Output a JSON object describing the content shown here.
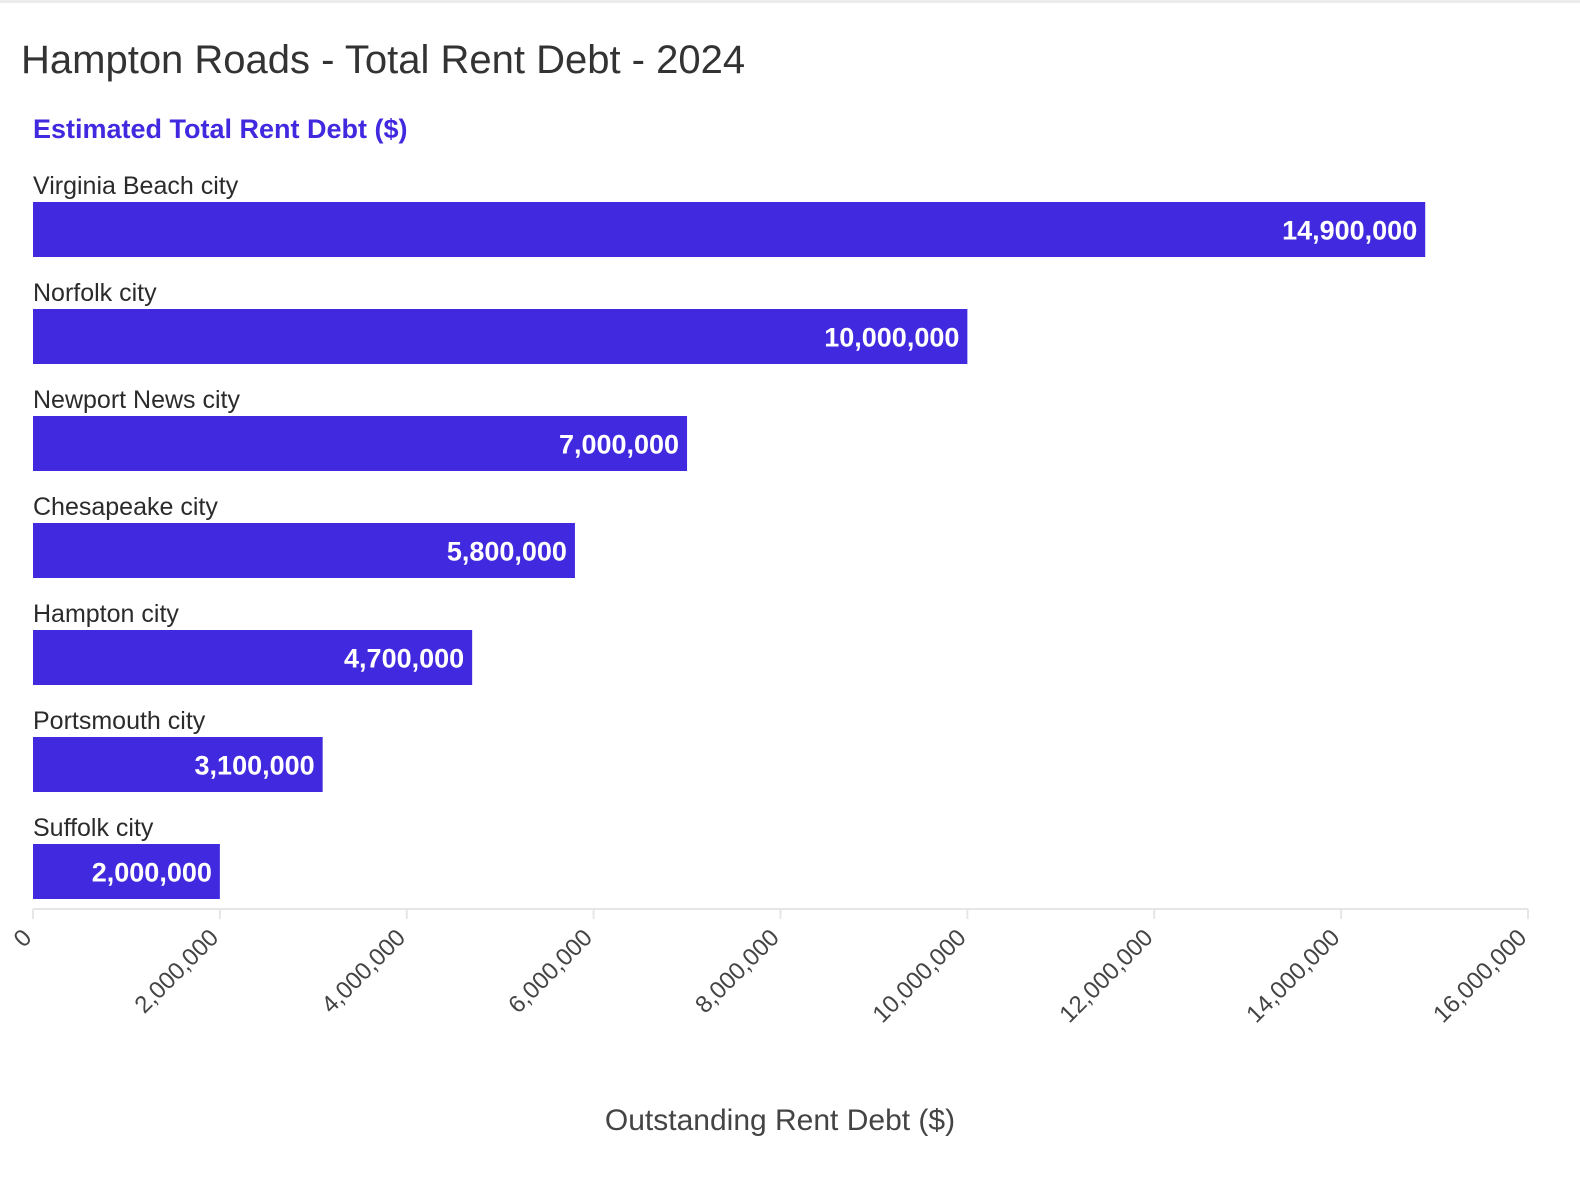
{
  "chart_data": {
    "type": "bar",
    "orientation": "horizontal",
    "title": "Hampton Roads - Total Rent Debt - 2024",
    "series": [
      {
        "name": "Estimated Total Rent Debt ($)",
        "color": "#4129df",
        "values": [
          14900000,
          10000000,
          7000000,
          5800000,
          4700000,
          3100000,
          2000000
        ]
      }
    ],
    "categories": [
      "Virginia Beach city",
      "Norfolk city",
      "Newport News city",
      "Chesapeake city",
      "Hampton city",
      "Portsmouth city",
      "Suffolk city"
    ],
    "data_labels": [
      "14,900,000",
      "10,000,000",
      "7,000,000",
      "5,800,000",
      "4,700,000",
      "3,100,000",
      "2,000,000"
    ],
    "xlabel": "Outstanding Rent Debt ($)",
    "ylabel": "",
    "xlim": [
      0,
      16000000
    ],
    "x_ticks": [
      0,
      2000000,
      4000000,
      6000000,
      8000000,
      10000000,
      12000000,
      14000000,
      16000000
    ],
    "x_tick_labels": [
      "0",
      "2,000,000",
      "4,000,000",
      "6,000,000",
      "8,000,000",
      "10,000,000",
      "12,000,000",
      "14,000,000",
      "16,000,000"
    ],
    "grid": false,
    "legend": "top-left"
  }
}
